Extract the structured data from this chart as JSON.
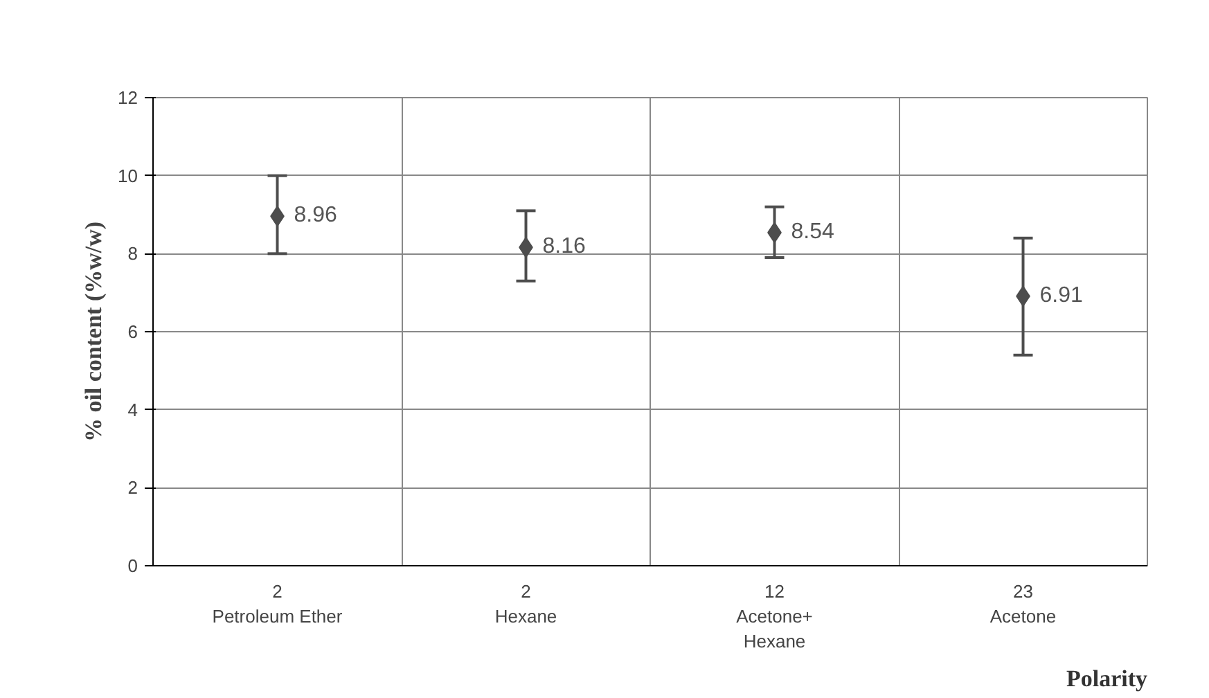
{
  "chart_data": {
    "type": "scatter",
    "xlabel": "Polarity",
    "ylabel": "% oil content (%w/w)",
    "categories": [
      "2\nPetroleum Ether",
      "2\nHexane",
      "12\nAcetone+\nHexane",
      "23\nAcetone"
    ],
    "values": [
      8.96,
      8.16,
      8.54,
      6.91
    ],
    "errors": [
      [
        8.0,
        10.0
      ],
      [
        7.3,
        9.1
      ],
      [
        7.9,
        9.2
      ],
      [
        5.4,
        8.4
      ]
    ],
    "color": "#4d4d4d",
    "marker": "diamond",
    "data_labels": true,
    "ylim": [
      0,
      12
    ],
    "yticks": [
      0,
      2,
      4,
      6,
      8,
      10,
      12
    ],
    "grid": true
  }
}
